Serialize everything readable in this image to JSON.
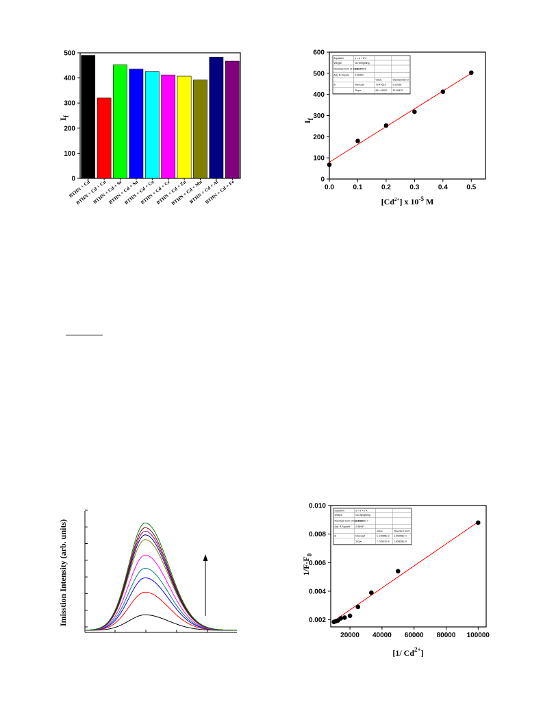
{
  "chart_data": [
    {
      "id": "bar",
      "type": "bar",
      "categories": [
        "BTHN + Cd",
        "BTHN + Cd + Cu",
        "BTHN + Cd + Sr",
        "BTHN + Cd + Sn",
        "BTHN + Cd + Co",
        "BTHN + Cd + Cr",
        "BTHN + Cd + Zn",
        "BTHN + Cd + Mn",
        "BTHN + Cd + Al",
        "BTHN + Cd + Fe"
      ],
      "values": [
        490,
        320,
        452,
        435,
        425,
        412,
        407,
        392,
        483,
        467
      ],
      "colors": [
        "#000000",
        "#ff0000",
        "#00ff00",
        "#0000ff",
        "#00ffff",
        "#ff00ff",
        "#ffff00",
        "#808000",
        "#000080",
        "#800080"
      ],
      "ylabel": "I",
      "ylabel_sub": "f",
      "ylim": [
        0,
        500
      ],
      "yticks": [
        0,
        100,
        200,
        300,
        400,
        500
      ]
    },
    {
      "id": "linear",
      "type": "scatter",
      "x": [
        0.0,
        0.1,
        0.2,
        0.3,
        0.4,
        0.5
      ],
      "y": [
        68,
        180,
        253,
        318,
        413,
        503
      ],
      "fit": {
        "intercept": 79.5,
        "slope": 841.4
      },
      "xlabel_prefix": "[Cd",
      "xlabel_sup": "2+",
      "xlabel_mid": "] x 10",
      "xlabel_sup2": "-5",
      "xlabel_suffix": " M",
      "ylabel": "I",
      "ylabel_sub": "f",
      "xlim": [
        0,
        0.55
      ],
      "ylim": [
        0,
        600
      ],
      "xticks": [
        "0.0",
        "0.1",
        "0.2",
        "0.3",
        "0.4",
        "0.5"
      ],
      "yticks": [
        0,
        100,
        200,
        300,
        400,
        500,
        600
      ],
      "table": [
        [
          "Equation",
          "y = a + b*x",
          "",
          ""
        ],
        [
          "Weight",
          "No Weighting",
          "",
          ""
        ],
        [
          "Residual Sum of Squares",
          "840.47878",
          "",
          ""
        ],
        [
          "Adj. R-Square",
          "0.98351",
          "",
          ""
        ],
        [
          "",
          "",
          "Value",
          "Standard Error"
        ],
        [
          "B",
          "Intercept",
          "79.47619",
          "9.23936"
        ],
        [
          "",
          "Slope",
          "841.42857",
          "30.38876"
        ]
      ]
    },
    {
      "id": "spectra",
      "type": "line",
      "ylabel": "Imisstion Intensity (arb. units)",
      "series": [
        {
          "color": "#000000",
          "peak": 0.13
        },
        {
          "color": "#ff0000",
          "peak": 0.32
        },
        {
          "color": "#0000ff",
          "peak": 0.44
        },
        {
          "color": "#008080",
          "peak": 0.52
        },
        {
          "color": "#ff00ff",
          "peak": 0.63
        },
        {
          "color": "#808000",
          "peak": 0.76
        },
        {
          "color": "#000080",
          "peak": 0.8
        },
        {
          "color": "#800080",
          "peak": 0.83
        },
        {
          "color": "#800000",
          "peak": 0.86
        },
        {
          "color": "#008000",
          "peak": 0.9
        }
      ]
    },
    {
      "id": "bh",
      "type": "scatter",
      "x": [
        10000,
        11111,
        12500,
        14286,
        16667,
        20000,
        25000,
        33333,
        50000,
        100000
      ],
      "y": [
        0.00185,
        0.0019,
        0.00195,
        0.0021,
        0.00215,
        0.00228,
        0.0029,
        0.0039,
        0.0054,
        0.0088
      ],
      "fit": {
        "intercept": 0.00115,
        "slope": 7.7e-08
      },
      "xlabel_prefix": "[1/ Cd",
      "xlabel_sup": "2+",
      "xlabel_suffix": "]",
      "ylabel": "1/F-F",
      "ylabel_sub": "0",
      "xlim": [
        8000,
        105000
      ],
      "ylim": [
        0.0015,
        0.01
      ],
      "xticks": [
        "20000",
        "40000",
        "60000",
        "80000",
        "100000"
      ],
      "yticks": [
        "0.002",
        "0.004",
        "0.006",
        "0.008",
        "0.010"
      ],
      "table": [
        [
          "Equation",
          "y = a + b*x",
          "",
          ""
        ],
        [
          "Weight",
          "No Weighting",
          "",
          ""
        ],
        [
          "Residual Sum of Squares",
          "3.60538E-7",
          "",
          ""
        ],
        [
          "Adj. R-Square",
          "0.98957",
          "",
          ""
        ],
        [
          "",
          "",
          "Value",
          "Standard Error"
        ],
        [
          "B",
          "Intercept",
          "1.14955E-3",
          "1.05256E-4"
        ],
        [
          "",
          "Slope",
          "7.70597E-8",
          "2.85858E-9"
        ]
      ]
    }
  ]
}
